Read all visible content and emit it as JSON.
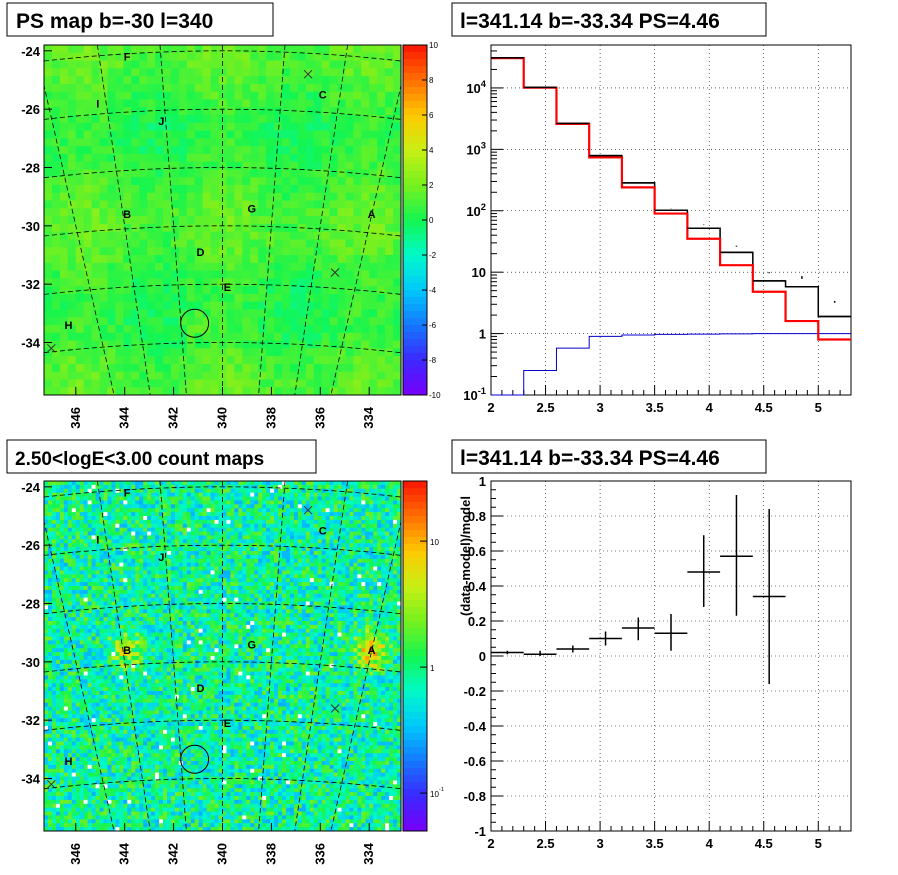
{
  "panels": {
    "ps_map": {
      "title": "PS map b=-30 l=340"
    },
    "count_map": {
      "title": "2.50<logE<3.00 count maps"
    },
    "spectrum": {
      "title": "l=341.14 b=-33.34 PS=4.46"
    },
    "residual": {
      "title": "l=341.14 b=-33.34 PS=4.46"
    }
  },
  "colors": {
    "data": "#000000",
    "model": "#ff0000",
    "ps_component": "#0000cc",
    "grid": "#000000"
  },
  "chart_data": [
    {
      "type": "heatmap",
      "title": "PS map b=-30 l=340",
      "xlabel": "",
      "ylabel": "",
      "x_ticks": [
        "346",
        "344",
        "342",
        "340",
        "338",
        "336",
        "334"
      ],
      "y_ticks": [
        "-24",
        "-26",
        "-28",
        "-30",
        "-32",
        "-34"
      ],
      "xlim": [
        347.3,
        332.7
      ],
      "ylim": [
        -35.8,
        -23.8
      ],
      "z_ticks": [
        "10",
        "8",
        "6",
        "4",
        "2",
        "0",
        "-2",
        "-4",
        "-6",
        "-8",
        "-10"
      ],
      "zlim": [
        -10,
        10
      ],
      "typical_value": 0.8,
      "grid": "dashed graticule",
      "sources": [
        {
          "label": "F",
          "l": 343.9,
          "b": -24.2
        },
        {
          "label": "C",
          "l": 335.9,
          "b": -25.5
        },
        {
          "label": "I",
          "l": 345.1,
          "b": -25.8
        },
        {
          "label": "J",
          "l": 342.5,
          "b": -26.4
        },
        {
          "label": "B",
          "l": 343.9,
          "b": -29.6
        },
        {
          "label": "G",
          "l": 338.8,
          "b": -29.4
        },
        {
          "label": "A",
          "l": 333.9,
          "b": -29.6
        },
        {
          "label": "D",
          "l": 340.9,
          "b": -30.9
        },
        {
          "label": "E",
          "l": 339.8,
          "b": -32.1
        },
        {
          "label": "H",
          "l": 346.3,
          "b": -33.4
        }
      ],
      "cross_markers": [
        {
          "l": 336.5,
          "b": -24.8
        },
        {
          "l": 335.4,
          "b": -31.6
        },
        {
          "l": 347.0,
          "b": -34.2
        }
      ],
      "circle": {
        "l": 341.14,
        "b": -33.34
      }
    },
    {
      "type": "heatmap",
      "title": "2.50<logE<3.00 count maps",
      "xlabel": "",
      "ylabel": "",
      "x_ticks": [
        "346",
        "344",
        "342",
        "340",
        "338",
        "336",
        "334"
      ],
      "y_ticks": [
        "-24",
        "-26",
        "-28",
        "-30",
        "-32",
        "-34"
      ],
      "xlim": [
        347.3,
        332.7
      ],
      "ylim": [
        -35.8,
        -23.8
      ],
      "z_ticks": [
        "10",
        "1",
        "10^-1"
      ],
      "zscale": "log",
      "zlim": [
        0.05,
        30
      ],
      "hotspots": [
        {
          "label": "A",
          "l": 333.9,
          "b": -29.6,
          "strength": "high"
        },
        {
          "label": "B",
          "l": 343.9,
          "b": -29.6,
          "strength": "medium"
        }
      ],
      "sources": [
        {
          "label": "F",
          "l": 343.9,
          "b": -24.2
        },
        {
          "label": "C",
          "l": 335.9,
          "b": -25.5
        },
        {
          "label": "I",
          "l": 345.1,
          "b": -25.8
        },
        {
          "label": "J",
          "l": 342.5,
          "b": -26.4
        },
        {
          "label": "B",
          "l": 343.9,
          "b": -29.6
        },
        {
          "label": "G",
          "l": 338.8,
          "b": -29.4
        },
        {
          "label": "A",
          "l": 333.9,
          "b": -29.6
        },
        {
          "label": "D",
          "l": 340.9,
          "b": -30.9
        },
        {
          "label": "E",
          "l": 339.8,
          "b": -32.1
        },
        {
          "label": "H",
          "l": 346.3,
          "b": -33.4
        }
      ],
      "cross_markers": [
        {
          "l": 336.5,
          "b": -24.8
        },
        {
          "l": 335.4,
          "b": -31.6
        },
        {
          "l": 347.0,
          "b": -34.2
        }
      ],
      "circle": {
        "l": 341.14,
        "b": -33.34
      }
    },
    {
      "type": "line",
      "title": "l=341.14 b=-33.34 PS=4.46",
      "xlabel": "",
      "ylabel": "",
      "xlim": [
        2,
        5.3
      ],
      "ylim": [
        0.1,
        50000
      ],
      "yscale": "log",
      "x_ticks": [
        "2",
        "2.5",
        "3",
        "3.5",
        "4",
        "4.5",
        "5"
      ],
      "y_ticks": [
        "10^-1",
        "1",
        "10",
        "10^2",
        "10^3",
        "10^4"
      ],
      "grid": true,
      "bin_edges": [
        2.0,
        2.3,
        2.6,
        2.9,
        3.2,
        3.5,
        3.8,
        4.1,
        4.4,
        4.7,
        5.0,
        5.3
      ],
      "series": [
        {
          "role": "data",
          "style": "crosses",
          "x": [
            2.15,
            2.45,
            2.75,
            3.05,
            3.35,
            3.65,
            3.95,
            4.25,
            4.55,
            4.85,
            5.15
          ],
          "values": [
            31000,
            10200,
            2650,
            790,
            285,
            102,
            52,
            21,
            7.2,
            5.8,
            1.9
          ],
          "err_lo": [
            31000,
            10200,
            2650,
            790,
            285,
            95,
            45,
            16,
            4.8,
            3.8,
            0.62
          ],
          "err_hi": [
            31000,
            10200,
            2650,
            790,
            285,
            110,
            60,
            27,
            10,
            8.6,
            3.4
          ]
        },
        {
          "role": "model",
          "style": "step",
          "values": [
            30500,
            10100,
            2600,
            740,
            240,
            90,
            35,
            13,
            4.8,
            1.6,
            0.8
          ]
        },
        {
          "role": "ps_component",
          "style": "step",
          "values": [
            0.07,
            0.25,
            0.58,
            0.9,
            0.95,
            0.97,
            0.98,
            0.99,
            1.0,
            1.0,
            1.0
          ]
        }
      ]
    },
    {
      "type": "scatter",
      "title": "l=341.14 b=-33.34 PS=4.46",
      "xlabel": "",
      "ylabel": "(data-model)/model",
      "xlim": [
        2,
        5.3
      ],
      "ylim": [
        -1,
        1
      ],
      "x_ticks": [
        "2",
        "2.5",
        "3",
        "3.5",
        "4",
        "4.5",
        "5"
      ],
      "y_ticks": [
        "1",
        "0.8",
        "0.6",
        "0.4",
        "0.2",
        "0",
        "-0.2",
        "-0.4",
        "-0.6",
        "-0.8",
        "-1"
      ],
      "grid": true,
      "points": [
        {
          "x": 2.15,
          "y": 0.02,
          "xerr": 0.15,
          "ylo": 0.01,
          "yhi": 0.03
        },
        {
          "x": 2.45,
          "y": 0.01,
          "xerr": 0.15,
          "ylo": 0.0,
          "yhi": 0.03
        },
        {
          "x": 2.75,
          "y": 0.04,
          "xerr": 0.15,
          "ylo": 0.02,
          "yhi": 0.06
        },
        {
          "x": 3.05,
          "y": 0.1,
          "xerr": 0.15,
          "ylo": 0.06,
          "yhi": 0.14
        },
        {
          "x": 3.35,
          "y": 0.16,
          "xerr": 0.15,
          "ylo": 0.09,
          "yhi": 0.22
        },
        {
          "x": 3.65,
          "y": 0.13,
          "xerr": 0.15,
          "ylo": 0.03,
          "yhi": 0.24
        },
        {
          "x": 3.95,
          "y": 0.48,
          "xerr": 0.15,
          "ylo": 0.28,
          "yhi": 0.69
        },
        {
          "x": 4.25,
          "y": 0.57,
          "xerr": 0.15,
          "ylo": 0.23,
          "yhi": 0.92
        },
        {
          "x": 4.55,
          "y": 0.34,
          "xerr": 0.15,
          "ylo": -0.16,
          "yhi": 0.84
        }
      ]
    }
  ]
}
